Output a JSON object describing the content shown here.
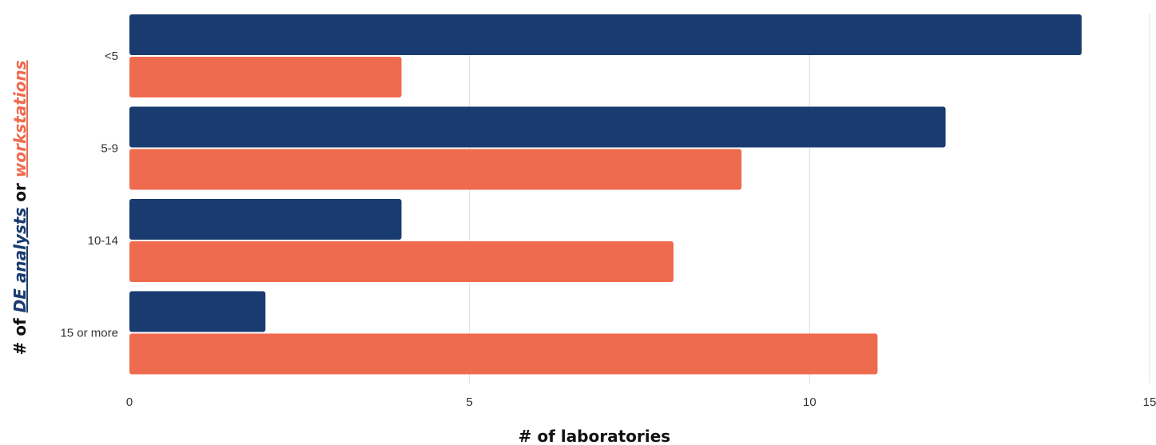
{
  "chart_data": {
    "type": "bar",
    "orientation": "horizontal",
    "categories": [
      "<5",
      "5-9",
      "10-14",
      "15 or more"
    ],
    "series": [
      {
        "name": "DE analysts",
        "color": "#1a3b70",
        "values": [
          14,
          12,
          4,
          2
        ]
      },
      {
        "name": "workstations",
        "color": "#ef6b4f",
        "values": [
          4,
          9,
          8,
          11
        ]
      }
    ],
    "xlabel": "# of laboratories",
    "ylabel": {
      "prefix": "# of ",
      "series_a": "DE analysts",
      "joiner": " or ",
      "series_b": "workstations"
    },
    "xlim": [
      0,
      15
    ],
    "xticks": [
      "0",
      "5",
      "10",
      "15"
    ],
    "grid": true,
    "legend": "none"
  }
}
